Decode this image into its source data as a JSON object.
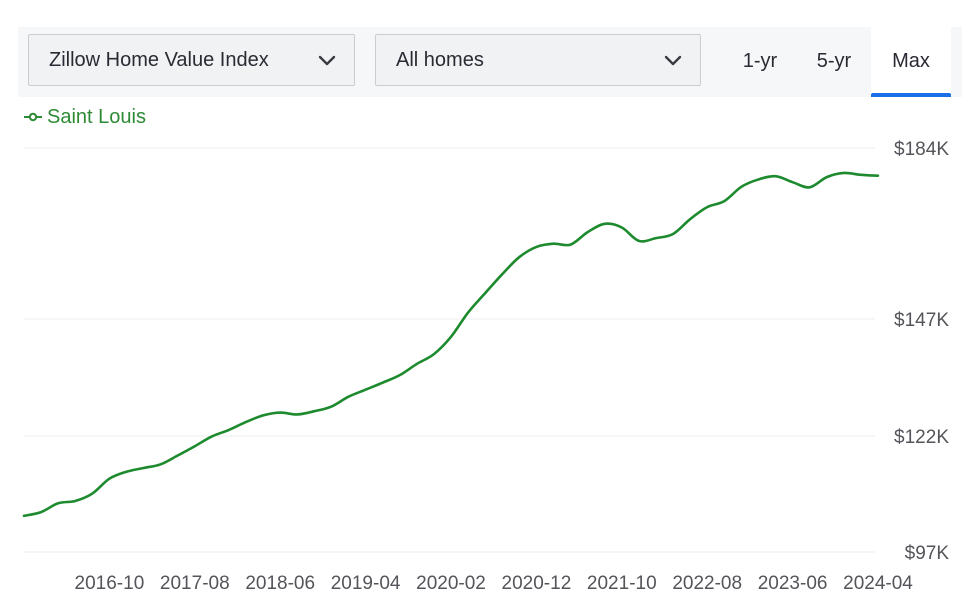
{
  "toolbar": {
    "metric_select": {
      "value": "Zillow Home Value Index"
    },
    "home_type_select": {
      "value": "All homes"
    },
    "ranges": [
      "1-yr",
      "5-yr",
      "Max"
    ],
    "active_range": "Max",
    "accent_color": "#1a6ee8"
  },
  "chart_data": {
    "type": "line",
    "series": [
      {
        "name": "Saint Louis",
        "color": "#1e8a2e",
        "x": [
          "2015-12",
          "2016-02",
          "2016-04",
          "2016-06",
          "2016-08",
          "2016-10",
          "2016-12",
          "2017-02",
          "2017-04",
          "2017-06",
          "2017-08",
          "2017-10",
          "2017-12",
          "2018-02",
          "2018-04",
          "2018-06",
          "2018-08",
          "2018-10",
          "2018-12",
          "2019-02",
          "2019-04",
          "2019-06",
          "2019-08",
          "2019-10",
          "2019-12",
          "2020-02",
          "2020-04",
          "2020-06",
          "2020-08",
          "2020-10",
          "2020-12",
          "2021-02",
          "2021-04",
          "2021-06",
          "2021-08",
          "2021-10",
          "2021-12",
          "2022-02",
          "2022-04",
          "2022-06",
          "2022-08",
          "2022-10",
          "2022-12",
          "2023-02",
          "2023-04",
          "2023-06",
          "2023-08",
          "2023-10",
          "2023-12",
          "2024-02",
          "2024-04"
        ],
        "values": [
          104.8,
          105.6,
          107.5,
          108.0,
          109.6,
          112.8,
          114.3,
          115.1,
          115.9,
          117.8,
          119.8,
          121.9,
          123.3,
          125.0,
          126.4,
          127.0,
          126.6,
          127.3,
          128.3,
          130.4,
          131.9,
          133.4,
          135.0,
          137.4,
          139.5,
          143.2,
          148.4,
          152.6,
          156.7,
          160.4,
          162.6,
          163.3,
          163.1,
          165.8,
          167.6,
          166.8,
          163.9,
          164.5,
          165.4,
          168.6,
          171.2,
          172.5,
          175.6,
          177.2,
          177.9,
          176.6,
          175.5,
          177.7,
          178.6,
          178.2,
          178.0
        ]
      }
    ],
    "x_tick_labels": [
      "2016-10",
      "2017-08",
      "2018-06",
      "2019-04",
      "2020-02",
      "2020-12",
      "2021-10",
      "2022-08",
      "2023-06",
      "2024-04"
    ],
    "y_tick_labels": [
      "$97K",
      "$122K",
      "$147K",
      "$184K"
    ],
    "y_ticks": [
      97,
      122,
      147,
      184
    ],
    "ylabel": "",
    "xlabel": "",
    "grid": true,
    "legend_position": "top-left"
  }
}
